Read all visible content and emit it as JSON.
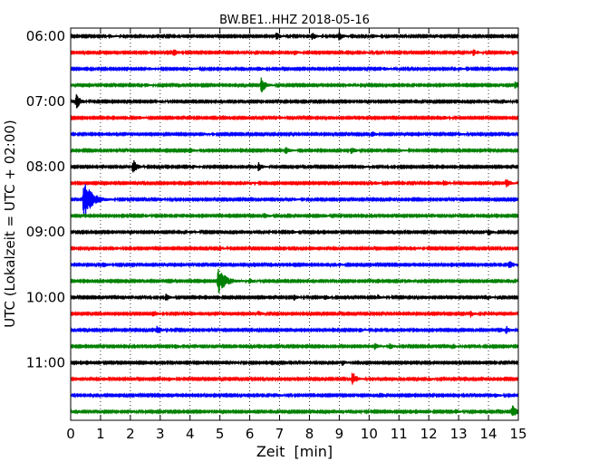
{
  "chart_data": {
    "type": "line",
    "title": "BW.BE1..HHZ 2018-05-16",
    "xlabel": "Zeit  [min]",
    "ylabel": "UTC (Lokalzeit = UTC + 02:00)",
    "xlim": [
      0,
      15
    ],
    "x_ticks": [
      "0",
      "1",
      "2",
      "3",
      "4",
      "5",
      "6",
      "7",
      "8",
      "9",
      "10",
      "11",
      "12",
      "13",
      "14",
      "15"
    ],
    "y_tick_labels": [
      "06:00",
      "07:00",
      "08:00",
      "09:00",
      "10:00",
      "11:00"
    ],
    "y_tick_rows": [
      0,
      4,
      8,
      12,
      16,
      20
    ],
    "grid": "vertical dotted",
    "colors": [
      "#000000",
      "#ff0000",
      "#0000ff",
      "#008000"
    ],
    "rows": [
      {
        "time": "06:00",
        "color": "#000000",
        "events": [
          [
            6.9,
            0.4
          ],
          [
            8.1,
            0.45
          ],
          [
            9.0,
            0.5
          ],
          [
            10.1,
            0.3
          ],
          [
            1.3,
            0.2
          ]
        ]
      },
      {
        "time": "06:15",
        "color": "#ff0000",
        "events": [
          [
            3.45,
            0.45
          ],
          [
            7.5,
            0.35
          ],
          [
            13.5,
            0.4
          ],
          [
            14.8,
            0.35
          ],
          [
            9.8,
            0.25
          ]
        ]
      },
      {
        "time": "06:30",
        "color": "#0000ff",
        "events": [
          [
            2.6,
            0.2
          ],
          [
            4.0,
            0.2
          ],
          [
            6.3,
            0.35
          ],
          [
            10.5,
            0.2
          ],
          [
            13.0,
            0.2
          ]
        ]
      },
      {
        "time": "06:45",
        "color": "#008000",
        "events": [
          [
            6.4,
            1.0
          ],
          [
            2.5,
            0.25
          ],
          [
            14.9,
            0.5
          ],
          [
            9.3,
            0.2
          ]
        ]
      },
      {
        "time": "07:00",
        "color": "#000000",
        "events": [
          [
            0.2,
            0.9
          ],
          [
            14.5,
            0.25
          ],
          [
            3.0,
            0.15
          ]
        ]
      },
      {
        "time": "07:15",
        "color": "#ff0000",
        "events": [
          [
            2.3,
            0.2
          ],
          [
            7.0,
            0.2
          ],
          [
            12.5,
            0.2
          ]
        ]
      },
      {
        "time": "07:30",
        "color": "#0000ff",
        "events": [
          [
            10.1,
            0.3
          ],
          [
            13.0,
            0.2
          ],
          [
            4.5,
            0.15
          ]
        ]
      },
      {
        "time": "07:45",
        "color": "#008000",
        "events": [
          [
            4.0,
            0.35
          ],
          [
            7.2,
            0.45
          ],
          [
            9.4,
            0.45
          ],
          [
            11.0,
            0.2
          ]
        ]
      },
      {
        "time": "08:00",
        "color": "#000000",
        "events": [
          [
            2.1,
            0.9
          ],
          [
            6.3,
            0.5
          ],
          [
            4.1,
            0.2
          ],
          [
            9.8,
            0.2
          ]
        ]
      },
      {
        "time": "08:15",
        "color": "#ff0000",
        "events": [
          [
            12.5,
            0.4
          ],
          [
            14.6,
            0.55
          ],
          [
            10.2,
            0.2
          ],
          [
            6.0,
            0.15
          ]
        ]
      },
      {
        "time": "08:30",
        "color": "#0000ff",
        "events": [
          [
            0.45,
            2.4
          ],
          [
            3.0,
            0.15
          ],
          [
            7.5,
            0.15
          ]
        ]
      },
      {
        "time": "08:45",
        "color": "#008000",
        "events": [
          [
            6.5,
            0.35
          ],
          [
            8.5,
            0.2
          ],
          [
            2.5,
            0.15
          ]
        ]
      },
      {
        "time": "09:00",
        "color": "#000000",
        "events": [
          [
            14.0,
            0.4
          ],
          [
            7.4,
            0.25
          ],
          [
            4.0,
            0.2
          ]
        ]
      },
      {
        "time": "09:15",
        "color": "#ff0000",
        "events": [
          [
            1.5,
            0.2
          ],
          [
            5.0,
            0.25
          ],
          [
            11.5,
            0.25
          ]
        ]
      },
      {
        "time": "09:30",
        "color": "#0000ff",
        "events": [
          [
            1.1,
            0.3
          ],
          [
            14.7,
            0.55
          ],
          [
            9.0,
            0.2
          ]
        ]
      },
      {
        "time": "09:45",
        "color": "#008000",
        "events": [
          [
            4.95,
            1.5
          ],
          [
            6.0,
            0.25
          ],
          [
            11.3,
            0.2
          ]
        ]
      },
      {
        "time": "10:00",
        "color": "#000000",
        "events": [
          [
            3.2,
            0.4
          ],
          [
            7.5,
            0.3
          ],
          [
            8.5,
            0.35
          ],
          [
            10.3,
            0.3
          ],
          [
            14.0,
            0.25
          ]
        ]
      },
      {
        "time": "10:15",
        "color": "#ff0000",
        "events": [
          [
            2.75,
            0.5
          ],
          [
            6.3,
            0.3
          ],
          [
            13.4,
            0.4
          ]
        ]
      },
      {
        "time": "10:30",
        "color": "#0000ff",
        "events": [
          [
            2.9,
            0.5
          ],
          [
            14.6,
            0.45
          ],
          [
            9.7,
            0.25
          ]
        ]
      },
      {
        "time": "10:45",
        "color": "#008000",
        "events": [
          [
            3.5,
            0.3
          ],
          [
            10.2,
            0.35
          ],
          [
            10.7,
            0.35
          ],
          [
            12.8,
            0.3
          ]
        ]
      },
      {
        "time": "11:00",
        "color": "#000000",
        "events": [
          [
            9.1,
            0.3
          ],
          [
            5.5,
            0.15
          ]
        ]
      },
      {
        "time": "11:15",
        "color": "#ff0000",
        "events": [
          [
            9.45,
            0.9
          ],
          [
            1.1,
            0.2
          ],
          [
            3.3,
            0.3
          ],
          [
            12.0,
            0.2
          ]
        ]
      },
      {
        "time": "11:30",
        "color": "#0000ff",
        "events": [
          [
            14.2,
            0.3
          ],
          [
            7.0,
            0.15
          ]
        ]
      },
      {
        "time": "11:45",
        "color": "#008000",
        "events": [
          [
            14.8,
            0.9
          ],
          [
            12.9,
            0.3
          ],
          [
            2.0,
            0.15
          ]
        ]
      }
    ]
  }
}
